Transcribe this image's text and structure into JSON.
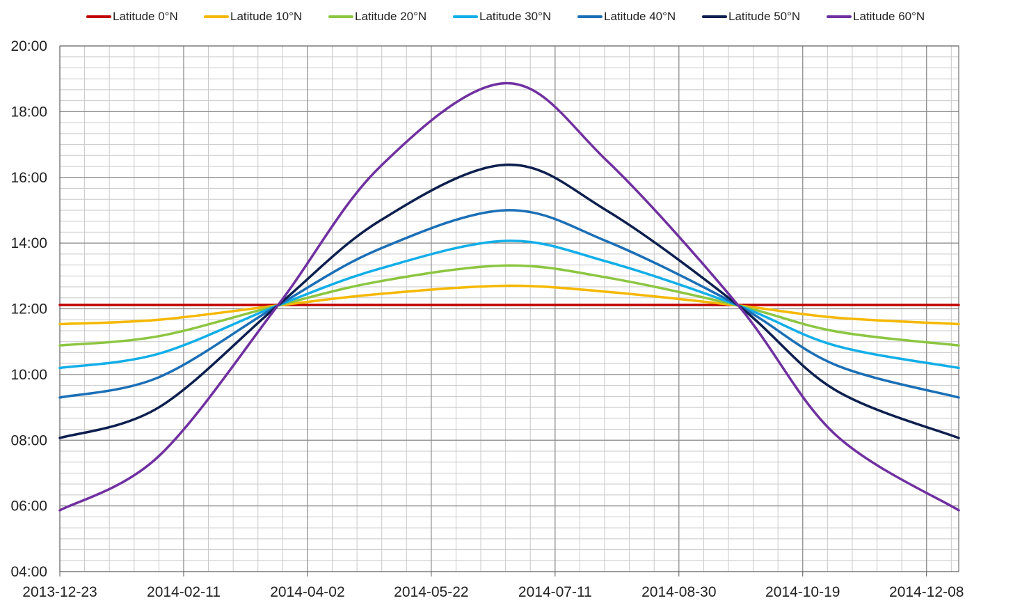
{
  "chart_data": {
    "type": "line",
    "title": "",
    "xlabel": "",
    "ylabel": "",
    "x_axis": {
      "kind": "date",
      "range": [
        "2013-12-23",
        "2014-12-21"
      ],
      "tick_labels": [
        "2013-12-23",
        "2014-02-11",
        "2014-04-02",
        "2014-05-22",
        "2014-07-11",
        "2014-08-30",
        "2014-10-19",
        "2014-12-08"
      ]
    },
    "y_axis": {
      "kind": "time_of_day",
      "range": [
        "04:00",
        "20:00"
      ],
      "tick_labels": [
        "04:00",
        "06:00",
        "08:00",
        "10:00",
        "12:00",
        "14:00",
        "16:00",
        "18:00",
        "20:00"
      ]
    },
    "grid": true,
    "legend_position": "top",
    "x": [
      "2013-12-23",
      "2014-02-01",
      "2014-03-21",
      "2014-05-01",
      "2014-06-21",
      "2014-08-01",
      "2014-09-23",
      "2014-11-01",
      "2014-12-21"
    ],
    "series": [
      {
        "name": "Latitude 0°N",
        "color": "#c00000",
        "values": [
          "12:07",
          "12:07",
          "12:07",
          "12:07",
          "12:07",
          "12:07",
          "12:07",
          "12:07",
          "12:07"
        ]
      },
      {
        "name": "Latitude 10°N",
        "color": "#f5b800",
        "values": [
          "11:32",
          "11:40",
          "12:06",
          "12:27",
          "12:42",
          "12:31",
          "12:06",
          "11:44",
          "11:32"
        ]
      },
      {
        "name": "Latitude 20°N",
        "color": "#8cc641",
        "values": [
          "10:53",
          "11:10",
          "12:06",
          "12:50",
          "13:19",
          "12:57",
          "12:06",
          "11:19",
          "10:53"
        ]
      },
      {
        "name": "Latitude 30°N",
        "color": "#12aee8",
        "values": [
          "10:12",
          "10:38",
          "12:06",
          "13:13",
          "14:04",
          "13:26",
          "12:06",
          "10:53",
          "10:12"
        ]
      },
      {
        "name": "Latitude 40°N",
        "color": "#1b6fb6",
        "values": [
          "09:18",
          "09:55",
          "12:06",
          "13:49",
          "15:00",
          "14:03",
          "12:06",
          "10:18",
          "09:18"
        ]
      },
      {
        "name": "Latitude 50°N",
        "color": "#0d1f4e",
        "values": [
          "08:04",
          "09:00",
          "12:06",
          "14:40",
          "16:23",
          "14:59",
          "12:06",
          "09:32",
          "08:04"
        ]
      },
      {
        "name": "Latitude 60°N",
        "color": "#7030a0",
        "values": [
          "05:52",
          "07:31",
          "12:06",
          "16:18",
          "18:52",
          "16:30",
          "12:06",
          "08:11",
          "05:52"
        ]
      }
    ]
  }
}
